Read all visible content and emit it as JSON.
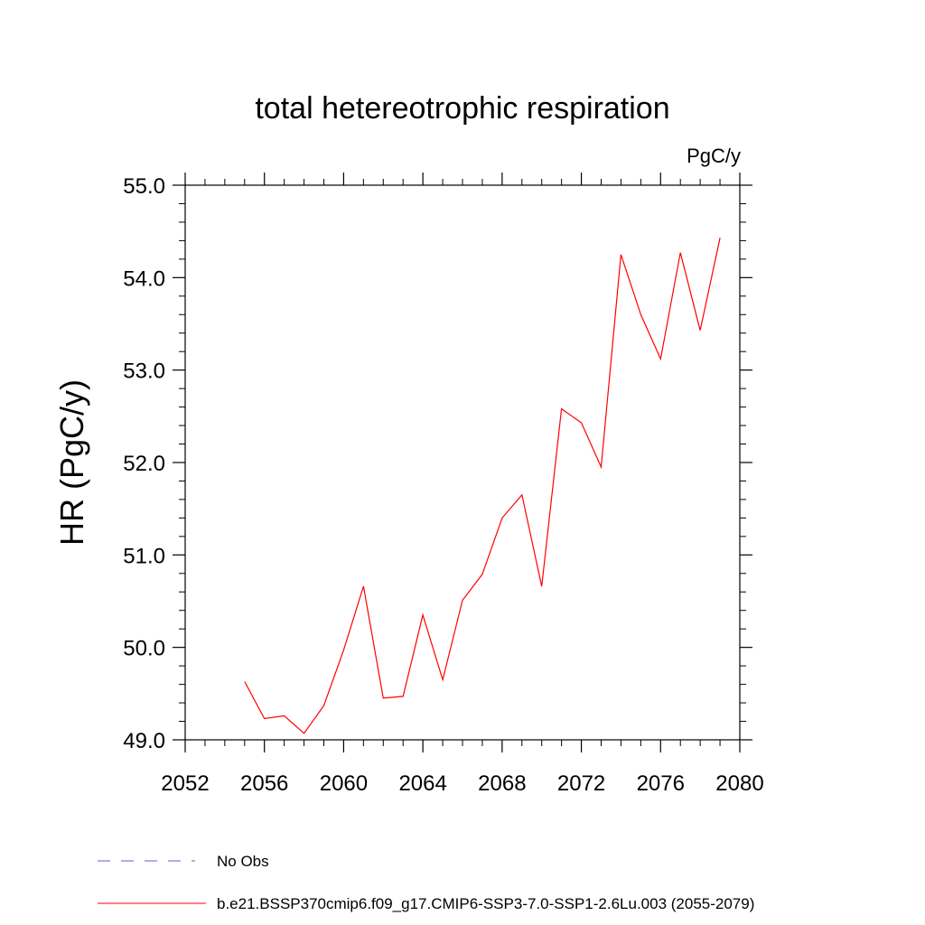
{
  "chart_data": {
    "type": "line",
    "title": "total hetereotrophic respiration",
    "units_label": "PgC/y",
    "xlabel": "",
    "ylabel": "HR  (PgC/y)",
    "xlim": [
      2052,
      2080
    ],
    "ylim": [
      49.0,
      55.0
    ],
    "x_ticks": [
      2052,
      2056,
      2060,
      2064,
      2068,
      2072,
      2076,
      2080
    ],
    "x_tick_labels": [
      "2052",
      "2056",
      "2060",
      "2064",
      "2068",
      "2072",
      "2076",
      "2080"
    ],
    "y_ticks": [
      49.0,
      50.0,
      51.0,
      52.0,
      53.0,
      54.0,
      55.0
    ],
    "y_tick_labels": [
      "49.0",
      "50.0",
      "51.0",
      "52.0",
      "53.0",
      "54.0",
      "55.0"
    ],
    "grid": false,
    "legend_position": "bottom-left",
    "series": [
      {
        "name": "b.e21.BSSP370cmip6.f09_g17.CMIP6-SSP3-7.0-SSP1-2.6Lu.003 (2055-2079)",
        "color": "#ff0000",
        "x": [
          2055,
          2056,
          2057,
          2058,
          2059,
          2060,
          2061,
          2062,
          2063,
          2064,
          2065,
          2066,
          2067,
          2068,
          2069,
          2070,
          2071,
          2072,
          2073,
          2074,
          2075,
          2076,
          2077,
          2078,
          2079
        ],
        "y": [
          49.63,
          49.23,
          49.26,
          49.07,
          49.37,
          49.97,
          50.66,
          49.45,
          49.47,
          50.35,
          49.65,
          50.51,
          50.79,
          51.4,
          51.65,
          50.66,
          52.58,
          52.43,
          51.95,
          54.25,
          53.6,
          53.12,
          54.27,
          53.43,
          54.43
        ]
      }
    ],
    "legend": [
      {
        "label": "No Obs",
        "color": "#6a5acd",
        "style": "dashed"
      },
      {
        "label": "b.e21.BSSP370cmip6.f09_g17.CMIP6-SSP3-7.0-SSP1-2.6Lu.003 (2055-2079)",
        "color": "#ff0000",
        "style": "solid"
      }
    ]
  }
}
